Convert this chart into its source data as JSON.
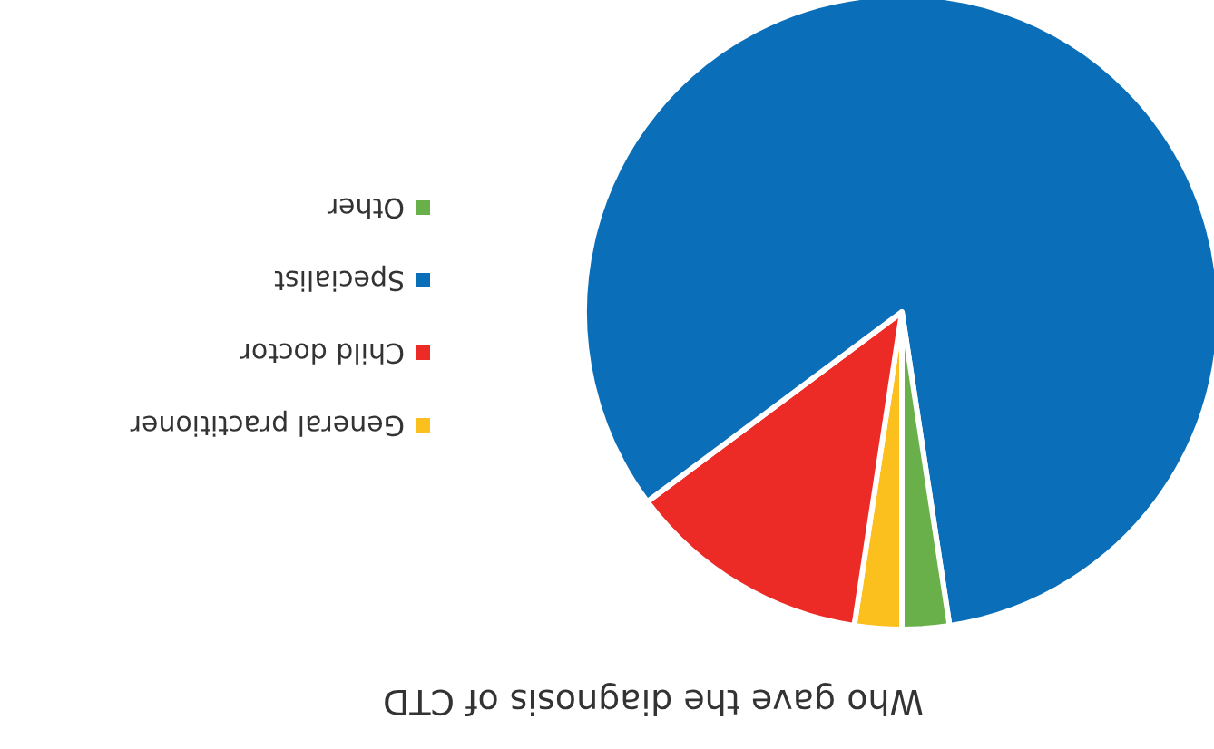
{
  "chart_data": {
    "type": "pie",
    "title": "Who gave the diagnosis of CTD",
    "categories": [
      "General practitioner",
      "Child doctor",
      "Specialist",
      "Other"
    ],
    "values": [
      2.4,
      12.4,
      82.8,
      2.4
    ],
    "colors": [
      "#fbbf1e",
      "#ec2a26",
      "#0a6eb9",
      "#69b04a"
    ],
    "legend": "left"
  }
}
